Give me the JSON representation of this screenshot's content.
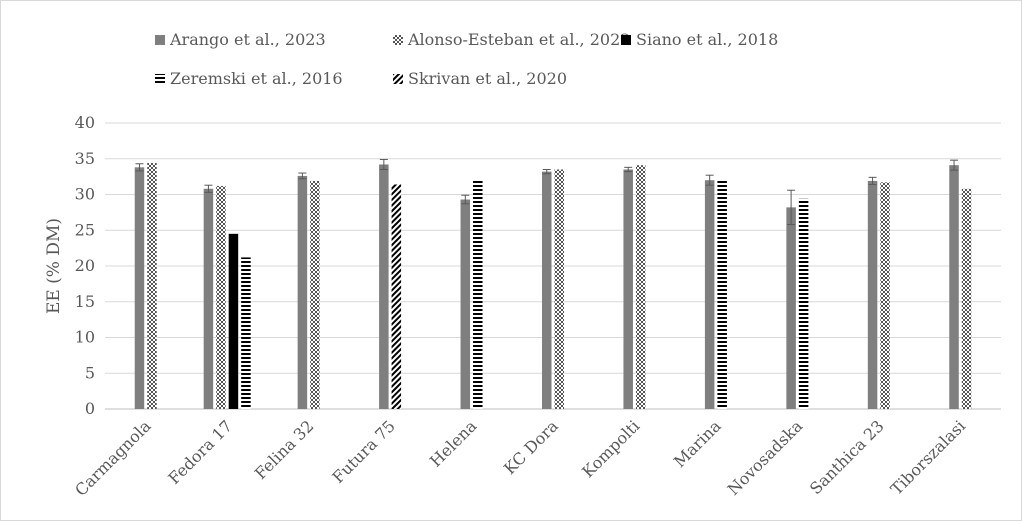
{
  "chart_data": {
    "type": "bar",
    "title": "",
    "xlabel": "",
    "ylabel": "EE (% DM)",
    "ylim": [
      0,
      40
    ],
    "yticks": [
      0,
      5,
      10,
      15,
      20,
      25,
      30,
      35,
      40
    ],
    "grid": true,
    "legend_position": "top",
    "categories": [
      "Carmagnola",
      "Fedora 17",
      "Felina 32",
      "Futura 75",
      "Helena",
      "KC Dora",
      "Kompolti",
      "Marina",
      "Novosadska",
      "Santhica 23",
      "Tiborszalasi"
    ],
    "series": [
      {
        "name": "Arango et al., 2023",
        "pattern": "solid-gray",
        "color": "#7f7f7f",
        "values": [
          33.8,
          30.8,
          32.6,
          34.2,
          29.3,
          33.2,
          33.5,
          32.0,
          28.2,
          31.9,
          34.1
        ],
        "error": [
          0.5,
          0.5,
          0.4,
          0.7,
          0.6,
          0.3,
          0.3,
          0.7,
          2.4,
          0.5,
          0.7
        ]
      },
      {
        "name": "Alonso-Esteban et al., 2022",
        "pattern": "checker",
        "color": "#7f7f7f",
        "values": [
          34.4,
          31.2,
          31.9,
          null,
          null,
          33.5,
          34.1,
          null,
          null,
          31.7,
          30.8
        ]
      },
      {
        "name": "Siano et al., 2018",
        "pattern": "solid-black",
        "color": "#000000",
        "values": [
          null,
          24.5,
          null,
          null,
          null,
          null,
          null,
          null,
          null,
          null,
          null
        ]
      },
      {
        "name": "Zeremski et al., 2016",
        "pattern": "horizontal-stripes",
        "color": "#000000",
        "values": [
          null,
          21.2,
          null,
          null,
          32.0,
          null,
          null,
          32.0,
          29.4,
          null,
          null
        ]
      },
      {
        "name": "Skrivan et al., 2020",
        "pattern": "diagonal-stripes",
        "color": "#000000",
        "values": [
          null,
          null,
          null,
          31.4,
          null,
          null,
          null,
          null,
          null,
          null,
          null
        ]
      }
    ]
  }
}
